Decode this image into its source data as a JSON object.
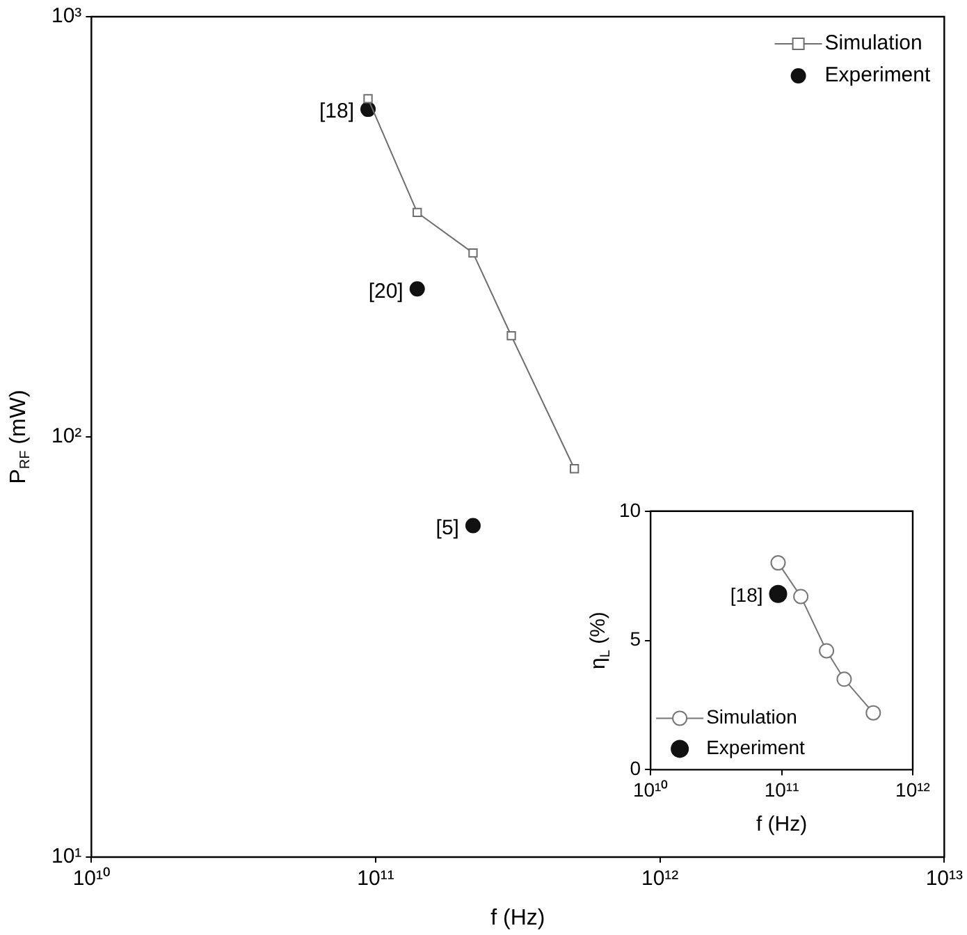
{
  "chart_data": [
    {
      "type": "line",
      "xlabel": "f (Hz)",
      "ylabel": "P$_{RF}$ (mW)",
      "log": "xy",
      "xlim": [
        10000000000,
        10000000000000
      ],
      "ylim": [
        10,
        1000
      ],
      "xticks": [
        {
          "value": 10000000000,
          "label": "10¹⁰"
        },
        {
          "value": 100000000000,
          "label": "10¹¹"
        },
        {
          "value": 1000000000000,
          "label": "10¹²"
        },
        {
          "value": 10000000000000,
          "label": "10¹³"
        }
      ],
      "yticks": [
        {
          "value": 10,
          "label": "10¹"
        },
        {
          "value": 100,
          "label": "10²"
        },
        {
          "value": 1000,
          "label": "10³"
        }
      ],
      "grid": false,
      "legend": "top right",
      "series": [
        {
          "name": "Simulation",
          "marker": "square",
          "color": "#6e6e6e",
          "x": [
            94000000000,
            140000000000,
            220000000000,
            300000000000,
            500000000000
          ],
          "values": [
            638,
            342,
            274,
            174,
            84
          ]
        },
        {
          "name": "Experiment",
          "type": "scatter",
          "marker": "circle",
          "color": "#111111",
          "x": [
            94000000000,
            140000000000,
            220000000000
          ],
          "values": [
            602,
            225,
            61.5
          ]
        }
      ],
      "annotations": [
        {
          "text": "[18]",
          "x": 94000000000,
          "y": 602
        },
        {
          "text": "[20]",
          "x": 140000000000,
          "y": 225
        },
        {
          "text": "[5]",
          "x": 220000000000,
          "y": 61.5
        }
      ]
    },
    {
      "type": "line",
      "xlabel": "f (Hz)",
      "ylabel": "η$_{L}$ (%)",
      "log": "x",
      "xlim": [
        10000000000,
        1000000000000
      ],
      "ylim": [
        0,
        10
      ],
      "xticks": [
        {
          "value": 10000000000,
          "label": "10¹⁰"
        },
        {
          "value": 100000000000,
          "label": "10¹¹"
        },
        {
          "value": 1000000000000,
          "label": "10¹²"
        }
      ],
      "yticks": [
        0,
        5,
        10
      ],
      "grid": false,
      "legend": "bottom left",
      "series": [
        {
          "name": "Simulation",
          "marker": "circle",
          "color": "#777777",
          "x": [
            94000000000,
            140000000000,
            220000000000,
            300000000000,
            500000000000
          ],
          "values": [
            8.0,
            6.7,
            4.6,
            3.5,
            2.2
          ]
        },
        {
          "name": "Experiment",
          "type": "scatter",
          "marker": "circle",
          "color": "#111111",
          "x": [
            94000000000
          ],
          "values": [
            6.8
          ]
        }
      ],
      "annotations": [
        {
          "text": "[18]",
          "x": 94000000000,
          "y": 6.8
        }
      ]
    }
  ]
}
